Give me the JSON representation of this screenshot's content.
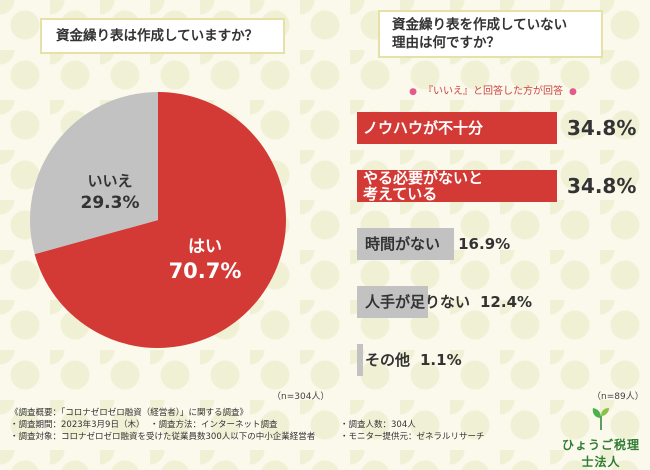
{
  "left": {
    "question": "資金繰り表は作成していますか？",
    "n_label": "（n=304人）"
  },
  "right": {
    "question_line1": "資金繰り表を作成していない",
    "question_line2": "理由は何ですか？",
    "respondent_tag": "『いいえ』と回答した方が回答",
    "tag_dot": "●",
    "n_label": "（n=89人）"
  },
  "chart_data": [
    {
      "type": "pie",
      "title": "資金繰り表は作成していますか？",
      "slices": [
        {
          "label": "はい",
          "value": 70.7,
          "value_text": "70.7%",
          "color": "#d33a36"
        },
        {
          "label": "いいえ",
          "value": 29.3,
          "value_text": "29.3%",
          "color": "#c2c2c2"
        }
      ]
    },
    {
      "type": "bar",
      "orientation": "horizontal",
      "title": "資金繰り表を作成していない理由は何ですか？",
      "categories": [
        "ノウハウが不十分",
        "やる必要がないと考えている",
        "時間がない",
        "人手が足りない",
        "その他"
      ],
      "category_lines": [
        [
          "ノウハウが不十分"
        ],
        [
          "やる必要がないと",
          "考えている"
        ],
        [
          "時間がない"
        ],
        [
          "人手が足りない"
        ],
        [
          "その他"
        ]
      ],
      "values": [
        34.8,
        34.8,
        16.9,
        12.4,
        1.1
      ],
      "value_texts": [
        "34.8%",
        "34.8%",
        "16.9%",
        "12.4%",
        "1.1%"
      ],
      "colors": [
        "#d33a36",
        "#d33a36",
        "#c2c2c2",
        "#c2c2c2",
        "#c2c2c2"
      ],
      "xlim": [
        0,
        34.8
      ]
    }
  ],
  "footer": {
    "overview": "《調査概要：「コロナゼロゼロ融資（経営者）」に関する調査》",
    "period": "・調査期間：2023年3月9日（木）",
    "method": "・調査方法：インターネット調査",
    "count": "・調査人数：304人",
    "target": "・調査対象：コロナゼロゼロ融資を受けた従業員数300人以下の中小企業経営者",
    "provider": "・モニター提供元：ゼネラルリサーチ"
  },
  "logo": {
    "name": "ひょうご税理士法人",
    "icon": "sprout-icon"
  }
}
